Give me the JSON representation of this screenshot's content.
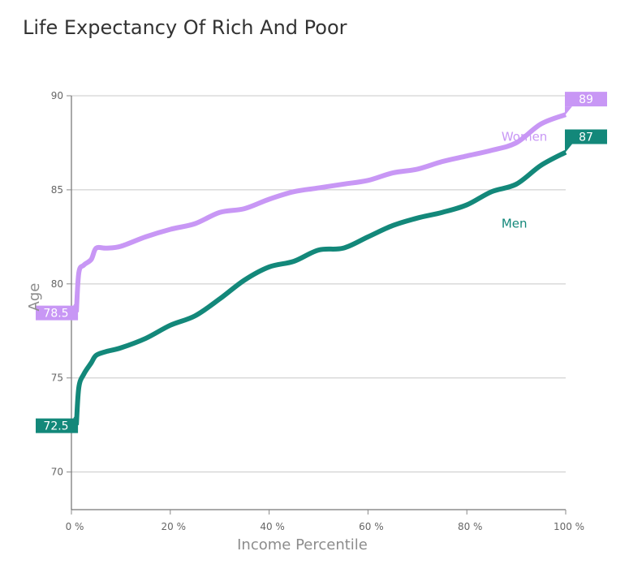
{
  "chart_data": {
    "type": "line",
    "title": "Life Expectancy Of Rich And Poor",
    "xlabel": "Income Percentile",
    "ylabel": "Age",
    "xlim": [
      0,
      100
    ],
    "ylim": [
      68,
      90
    ],
    "x_ticks": [
      0,
      20,
      40,
      60,
      80,
      100
    ],
    "x_tick_labels": [
      "0 %",
      "20 %",
      "40 %",
      "60 %",
      "80 %",
      "100 %"
    ],
    "y_ticks": [
      70,
      75,
      80,
      85,
      90
    ],
    "y_tick_labels": [
      "70",
      "75",
      "80",
      "85",
      "90"
    ],
    "grid": "horizontal",
    "series": [
      {
        "name": "Women",
        "color": "#c897f5",
        "start_label": "78.5",
        "end_label": "89",
        "x": [
          1,
          1.5,
          2.5,
          4,
          5,
          7,
          10,
          15,
          20,
          25,
          30,
          35,
          40,
          45,
          50,
          55,
          60,
          65,
          70,
          75,
          80,
          85,
          90,
          95,
          100
        ],
        "y": [
          78.5,
          80.6,
          81.0,
          81.3,
          81.9,
          81.9,
          82.0,
          82.5,
          82.9,
          83.2,
          83.8,
          84.0,
          84.5,
          84.9,
          85.1,
          85.3,
          85.5,
          85.9,
          86.1,
          86.5,
          86.8,
          87.1,
          87.5,
          88.5,
          89.0
        ]
      },
      {
        "name": "Men",
        "color": "#13887a",
        "start_label": "72.5",
        "end_label": "87",
        "x": [
          1,
          1.5,
          2.5,
          4,
          5,
          7,
          10,
          15,
          20,
          25,
          30,
          35,
          40,
          45,
          50,
          55,
          60,
          65,
          70,
          75,
          80,
          85,
          90,
          95,
          100
        ],
        "y": [
          72.5,
          74.5,
          75.2,
          75.8,
          76.2,
          76.4,
          76.6,
          77.1,
          77.8,
          78.3,
          79.2,
          80.2,
          80.9,
          81.2,
          81.8,
          81.9,
          82.5,
          83.1,
          83.5,
          83.8,
          84.2,
          84.9,
          85.3,
          86.3,
          87.0
        ]
      }
    ]
  }
}
